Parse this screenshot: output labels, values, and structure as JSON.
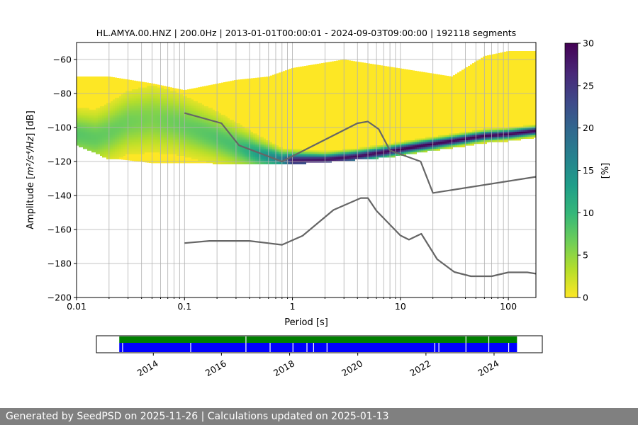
{
  "chart_data": [
    {
      "type": "heatmap",
      "title": "HL.AMYA.00.HNZ | 200.0Hz | 2013-01-01T00:00:01 - 2024-09-03T09:00:00 | 192118 segments",
      "xlabel": "Period [s]",
      "ylabel_main": "Amplitude [",
      "ylabel_math": "m²/s⁴/Hz",
      "ylabel_tail": "] [dB]",
      "xscale": "log",
      "xlim": [
        0.01,
        180
      ],
      "ylim": [
        -200,
        -50
      ],
      "xticks": [
        {
          "v": 0.01,
          "label": "0.01"
        },
        {
          "v": 0.1,
          "label": "0.1"
        },
        {
          "v": 1,
          "label": "1"
        },
        {
          "v": 10,
          "label": "10"
        },
        {
          "v": 100,
          "label": "100"
        }
      ],
      "yticks": [
        {
          "v": -60,
          "label": "−60"
        },
        {
          "v": -80,
          "label": "−80"
        },
        {
          "v": -100,
          "label": "−100"
        },
        {
          "v": -120,
          "label": "−120"
        },
        {
          "v": -140,
          "label": "−140"
        },
        {
          "v": -160,
          "label": "−160"
        },
        {
          "v": -180,
          "label": "−180"
        },
        {
          "v": -200,
          "label": "−200"
        }
      ],
      "grid": true,
      "colorbar": {
        "label": "[%]",
        "range": [
          0,
          30
        ],
        "ticks": [
          {
            "v": 0,
            "label": "0"
          },
          {
            "v": 5,
            "label": "5"
          },
          {
            "v": 10,
            "label": "10"
          },
          {
            "v": 15,
            "label": "15"
          },
          {
            "v": 20,
            "label": "20"
          },
          {
            "v": 25,
            "label": "25"
          },
          {
            "v": 30,
            "label": "30"
          }
        ],
        "colormap": [
          "#fde725",
          "#b5de2b",
          "#6ece58",
          "#35b779",
          "#1f9e89",
          "#26828e",
          "#31688e",
          "#3e4989",
          "#482878",
          "#440154"
        ]
      },
      "density": {
        "mode_curve": [
          [
            0.01,
            -104
          ],
          [
            0.015,
            -106
          ],
          [
            0.02,
            -103
          ],
          [
            0.03,
            -97
          ],
          [
            0.05,
            -95
          ],
          [
            0.08,
            -97
          ],
          [
            0.12,
            -101
          ],
          [
            0.2,
            -106
          ],
          [
            0.3,
            -111
          ],
          [
            0.5,
            -116
          ],
          [
            0.8,
            -119
          ],
          [
            1,
            -119.5
          ],
          [
            2,
            -119
          ],
          [
            4,
            -117
          ],
          [
            8,
            -114
          ],
          [
            15,
            -111
          ],
          [
            30,
            -108
          ],
          [
            60,
            -105
          ],
          [
            100,
            -104
          ],
          [
            180,
            -102
          ]
        ],
        "mode_width": [
          [
            0.01,
            8
          ],
          [
            0.05,
            11
          ],
          [
            0.3,
            7
          ],
          [
            0.8,
            3
          ],
          [
            2,
            2
          ],
          [
            10,
            1.8
          ],
          [
            180,
            1.5
          ]
        ],
        "mode_peak_pct": [
          [
            0.01,
            8
          ],
          [
            0.05,
            6
          ],
          [
            0.3,
            9
          ],
          [
            0.8,
            18
          ],
          [
            1,
            28
          ],
          [
            10,
            30
          ],
          [
            180,
            30
          ]
        ],
        "envelope_top": [
          [
            0.01,
            -70
          ],
          [
            0.02,
            -70
          ],
          [
            0.05,
            -74
          ],
          [
            0.1,
            -78
          ],
          [
            0.3,
            -72
          ],
          [
            0.6,
            -70
          ],
          [
            1,
            -65
          ],
          [
            3,
            -60
          ],
          [
            6,
            -63
          ],
          [
            12,
            -66
          ],
          [
            30,
            -70
          ],
          [
            60,
            -58
          ],
          [
            100,
            -55
          ],
          [
            180,
            -55
          ]
        ],
        "envelope_bottom": [
          [
            0.01,
            -110
          ],
          [
            0.02,
            -118
          ],
          [
            0.05,
            -121
          ],
          [
            0.1,
            -121
          ],
          [
            0.5,
            -121
          ],
          [
            1,
            -121
          ],
          [
            3,
            -119
          ],
          [
            8,
            -117
          ],
          [
            20,
            -113
          ],
          [
            60,
            -109
          ],
          [
            180,
            -106
          ]
        ]
      },
      "series": [
        {
          "name": "",
          "color": "#666666",
          "points": [
            [
              0.1,
              -91.5
            ],
            [
              0.22,
              -97.5
            ],
            [
              0.32,
              -110.5
            ],
            [
              0.8,
              -120
            ],
            [
              4,
              -97.5
            ],
            [
              5,
              -96.5
            ],
            [
              6.3,
              -101
            ],
            [
              8,
              -113.5
            ],
            [
              15.4,
              -120
            ],
            [
              20,
              -138.5
            ],
            [
              180,
              -129
            ]
          ]
        },
        {
          "name": "",
          "color": "#666666",
          "points": [
            [
              0.1,
              -168
            ],
            [
              0.17,
              -166.7
            ],
            [
              0.4,
              -166.7
            ],
            [
              0.8,
              -169
            ],
            [
              1.24,
              -163.7
            ],
            [
              2.4,
              -148.5
            ],
            [
              4.3,
              -141.5
            ],
            [
              5,
              -141.5
            ],
            [
              6,
              -149
            ],
            [
              10,
              -163.5
            ],
            [
              12,
              -166
            ],
            [
              15.6,
              -162.5
            ],
            [
              21.9,
              -177.5
            ],
            [
              31.6,
              -185
            ],
            [
              45,
              -187.5
            ],
            [
              70,
              -187.5
            ],
            [
              100,
              -185.2
            ],
            [
              150,
              -185.2
            ],
            [
              180,
              -186
            ]
          ]
        }
      ]
    },
    {
      "type": "timeline",
      "xticks": [
        {
          "year": 2014,
          "label": "2014"
        },
        {
          "year": 2016,
          "label": "2016"
        },
        {
          "year": 2018,
          "label": "2018"
        },
        {
          "year": 2020,
          "label": "2020"
        },
        {
          "year": 2022,
          "label": "2022"
        },
        {
          "year": 2024,
          "label": "2024"
        }
      ],
      "xlim": [
        "2012-05-01",
        "2025-06-01"
      ],
      "data_range": [
        "2013-01-01",
        "2024-09-03"
      ],
      "top_color": "#008000",
      "bottom_color": "#0000ff",
      "gaps_bottom": [
        "2013-02-01",
        "2015-02-01",
        "2016-09-15",
        "2017-06-01",
        "2018-02-01",
        "2018-07-01",
        "2018-09-10",
        "2019-02-01",
        "2022-04-01",
        "2022-05-15",
        "2023-03-01",
        "2023-11-01",
        "2024-06-01"
      ],
      "gaps_top": [
        "2016-09-15",
        "2023-03-01",
        "2023-11-01"
      ]
    }
  ],
  "footer": {
    "text": "Generated by SeedPSD on 2025-11-26 | Calculations updated on 2025-01-13"
  }
}
